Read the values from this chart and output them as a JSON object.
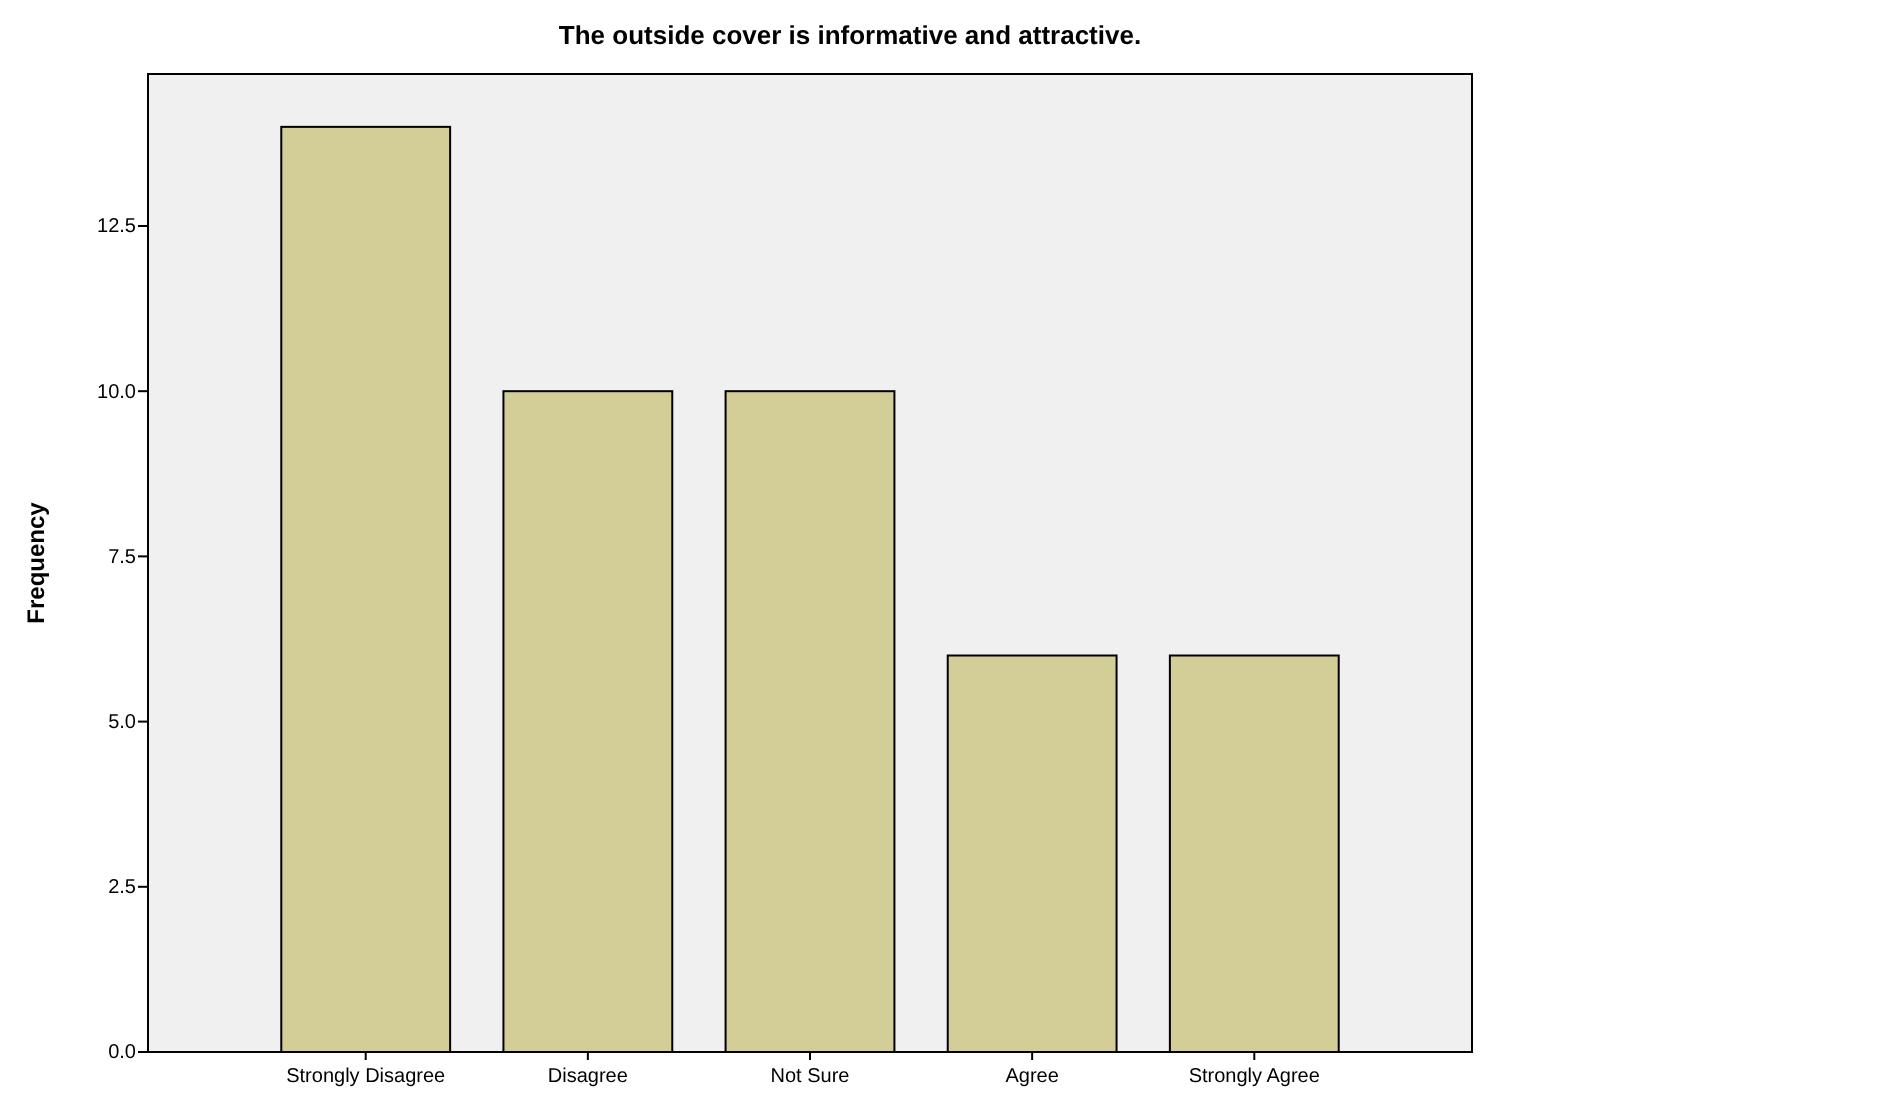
{
  "chart_data": {
    "type": "bar",
    "title": "The outside cover is informative and attractive.",
    "ylabel": "Frequency",
    "categories": [
      "Strongly Disagree",
      "Disagree",
      "Not Sure",
      "Agree",
      "Strongly Agree"
    ],
    "values": [
      14,
      10,
      10,
      6,
      6
    ],
    "color": "#d3ce98",
    "ylim": [
      0,
      14.8
    ],
    "yticks": [
      {
        "value": 0,
        "label": "0.0"
      },
      {
        "value": 2.5,
        "label": "2.5"
      },
      {
        "value": 5,
        "label": "5.0"
      },
      {
        "value": 7.5,
        "label": "7.5"
      },
      {
        "value": 10,
        "label": "10.0"
      },
      {
        "value": 12.5,
        "label": "12.5"
      }
    ],
    "grid": false
  }
}
